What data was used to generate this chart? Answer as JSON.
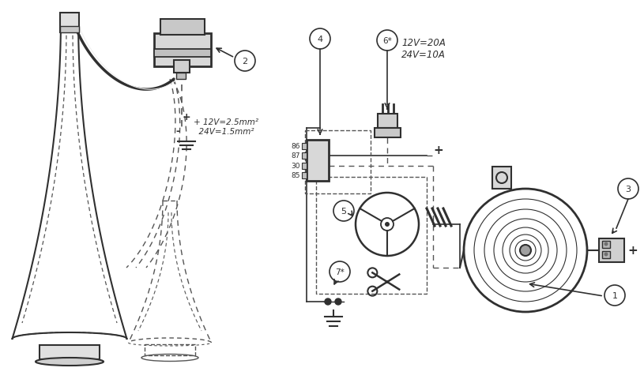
{
  "bg_color": "#ffffff",
  "line_color": "#404040",
  "dark_color": "#303030",
  "dashed_color": "#555555",
  "fig_width": 8.15,
  "fig_height": 4.81,
  "dpi": 100,
  "labels": {
    "fuse_label": "12V=20A\n24V=10A",
    "wire_label1": "+ 12V=2.5mm²",
    "wire_label2": "  24V=1.5mm²",
    "num1": "1",
    "num2": "2",
    "num3": "3",
    "num4": "4",
    "num5": "5",
    "num6": "6*",
    "num7": "7*",
    "minus": "-",
    "plus1": "+",
    "plus2": "+",
    "r86": "86",
    "r87": "87",
    "r85": "85",
    "r30": "30"
  }
}
